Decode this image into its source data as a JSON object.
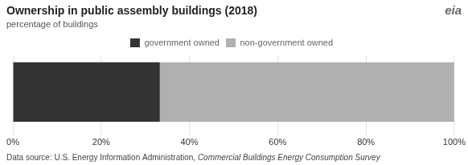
{
  "chart_data": {
    "type": "bar",
    "orientation": "horizontal",
    "stacked": true,
    "title": "Ownership in public assembly buildings (2018)",
    "subtitle": "percentage of buildings",
    "categories": [
      null
    ],
    "series": [
      {
        "name": "government owned",
        "color": "#333333",
        "values": [
          33.3
        ]
      },
      {
        "name": "non-government owned",
        "color": "#b0b0b0",
        "values": [
          66.7
        ]
      }
    ],
    "xlim": [
      0,
      100
    ],
    "xticks": [
      {
        "value": 0,
        "label": "0%"
      },
      {
        "value": 20,
        "label": "20%"
      },
      {
        "value": 40,
        "label": "40%"
      },
      {
        "value": 60,
        "label": "60%"
      },
      {
        "value": 80,
        "label": "80%"
      },
      {
        "value": 100,
        "label": "100%"
      }
    ],
    "grid": true,
    "legend": "top",
    "tick_labels": "x",
    "annotations": [
      "eia",
      "Data source: U.S. Energy Information Administration, ",
      "Commercial Buildings Energy Consumption Survey"
    ]
  }
}
